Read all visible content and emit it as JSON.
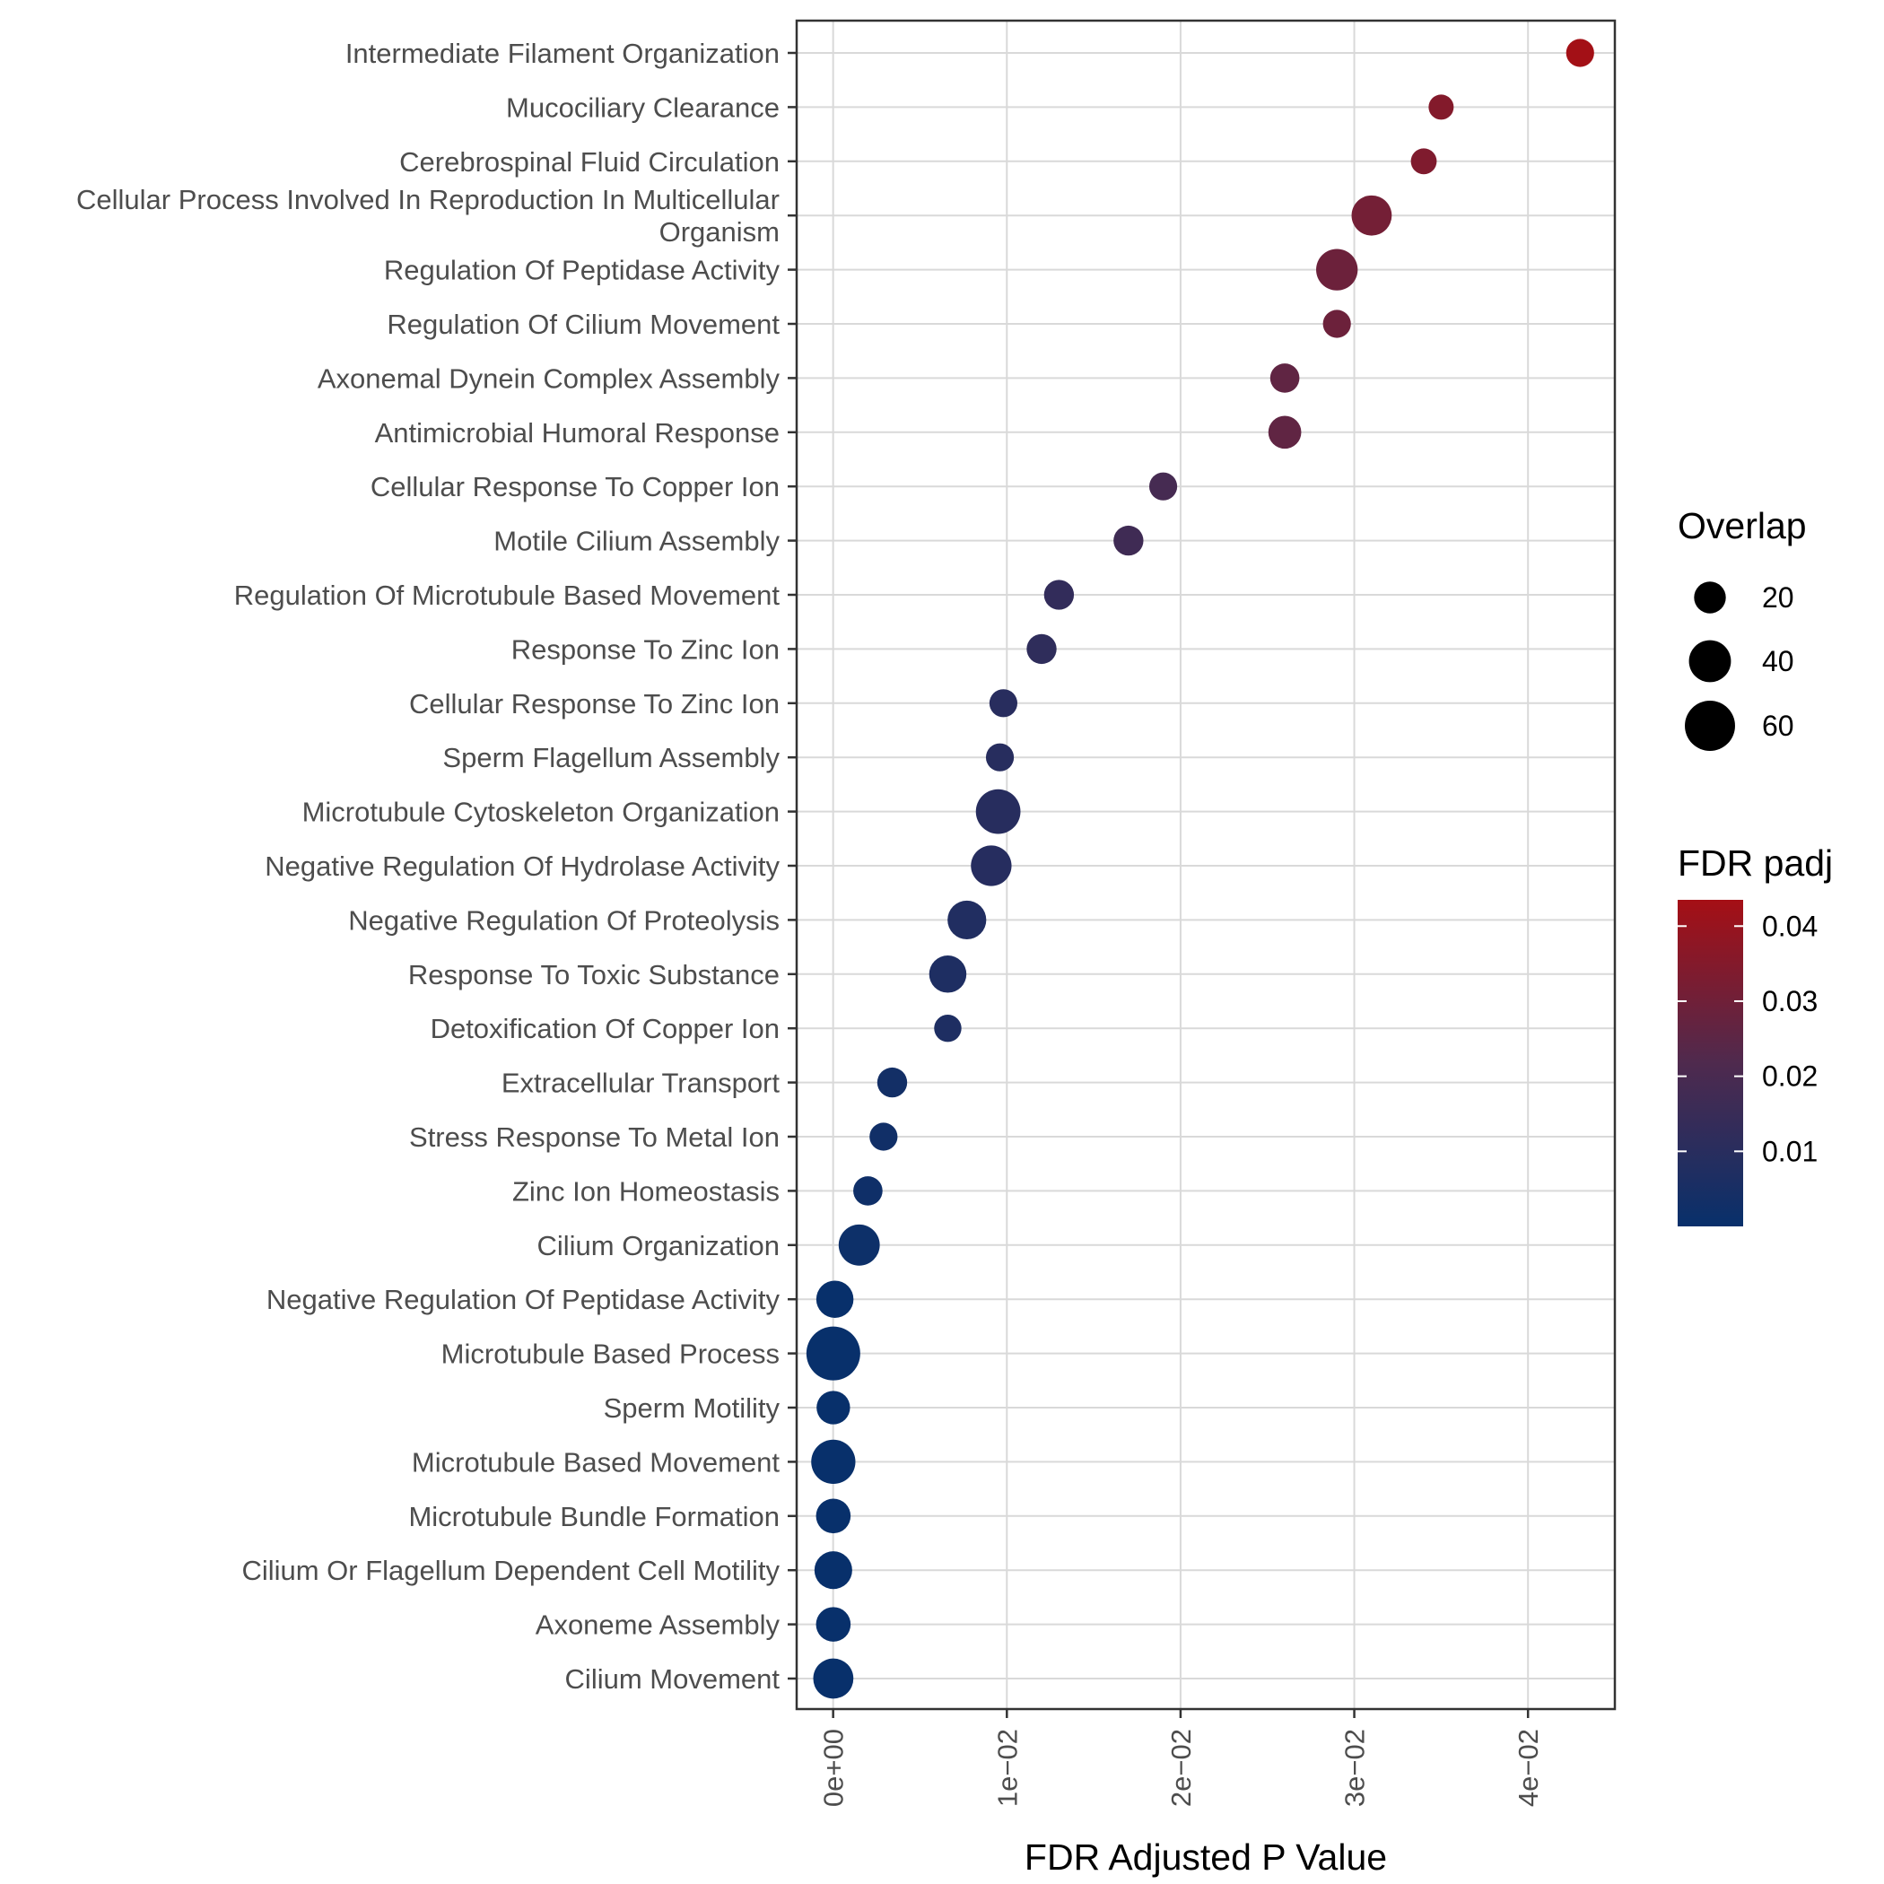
{
  "chart_data": {
    "type": "scatter",
    "xlabel": "FDR Adjusted P Value",
    "xlim": [
      -0.0021,
      0.045
    ],
    "x_ticks": [
      {
        "value": 0.0,
        "label": "0e+00"
      },
      {
        "value": 0.01,
        "label": "1e−02"
      },
      {
        "value": 0.02,
        "label": "2e−02"
      },
      {
        "value": 0.03,
        "label": "3e−02"
      },
      {
        "value": 0.04,
        "label": "4e−02"
      }
    ],
    "grid": true,
    "legend_placement": "right",
    "size_legend": {
      "title": "Overlap",
      "entries": [
        {
          "label": "20",
          "value": 20
        },
        {
          "label": "40",
          "value": 40
        },
        {
          "label": "60",
          "value": 60
        }
      ]
    },
    "color_legend": {
      "title": "FDR padj",
      "low_color": "#08306b",
      "mid_color": "#4f2a4e",
      "high_color": "#a50f15",
      "range": [
        0.0,
        0.0435
      ],
      "ticks": [
        {
          "value": 0.01,
          "label": "0.01"
        },
        {
          "value": 0.02,
          "label": "0.02"
        },
        {
          "value": 0.03,
          "label": "0.03"
        },
        {
          "value": 0.04,
          "label": "0.04"
        }
      ]
    },
    "points": [
      {
        "term": [
          "Intermediate Filament Organization"
        ],
        "fdr": 0.043,
        "overlap": 14
      },
      {
        "term": [
          "Mucociliary Clearance"
        ],
        "fdr": 0.035,
        "overlap": 10
      },
      {
        "term": [
          "Cerebrospinal Fluid Circulation"
        ],
        "fdr": 0.034,
        "overlap": 11
      },
      {
        "term": [
          "Cellular Process Involved In Reproduction In Multicellular",
          "Organism"
        ],
        "fdr": 0.031,
        "overlap": 36
      },
      {
        "term": [
          "Regulation Of Peptidase Activity"
        ],
        "fdr": 0.029,
        "overlap": 39
      },
      {
        "term": [
          "Regulation Of Cilium Movement"
        ],
        "fdr": 0.029,
        "overlap": 14
      },
      {
        "term": [
          "Axonemal Dynein Complex Assembly"
        ],
        "fdr": 0.026,
        "overlap": 16
      },
      {
        "term": [
          "Antimicrobial Humoral Response"
        ],
        "fdr": 0.026,
        "overlap": 22
      },
      {
        "term": [
          "Cellular Response To Copper Ion"
        ],
        "fdr": 0.019,
        "overlap": 14
      },
      {
        "term": [
          "Motile Cilium Assembly"
        ],
        "fdr": 0.017,
        "overlap": 17
      },
      {
        "term": [
          "Regulation Of Microtubule Based Movement"
        ],
        "fdr": 0.013,
        "overlap": 17
      },
      {
        "term": [
          "Response To Zinc Ion"
        ],
        "fdr": 0.012,
        "overlap": 17
      },
      {
        "term": [
          "Cellular Response To Zinc Ion"
        ],
        "fdr": 0.0098,
        "overlap": 14
      },
      {
        "term": [
          "Sperm Flagellum Assembly"
        ],
        "fdr": 0.0096,
        "overlap": 14
      },
      {
        "term": [
          "Microtubule Cytoskeleton Organization"
        ],
        "fdr": 0.0095,
        "overlap": 46
      },
      {
        "term": [
          "Negative Regulation Of Hydrolase Activity"
        ],
        "fdr": 0.0091,
        "overlap": 37
      },
      {
        "term": [
          "Negative Regulation Of Proteolysis"
        ],
        "fdr": 0.0077,
        "overlap": 33
      },
      {
        "term": [
          "Response To Toxic Substance"
        ],
        "fdr": 0.0066,
        "overlap": 30
      },
      {
        "term": [
          "Detoxification Of Copper Ion"
        ],
        "fdr": 0.0066,
        "overlap": 13
      },
      {
        "term": [
          "Extracellular Transport"
        ],
        "fdr": 0.0034,
        "overlap": 17
      },
      {
        "term": [
          "Stress Response To Metal Ion"
        ],
        "fdr": 0.0029,
        "overlap": 14
      },
      {
        "term": [
          "Zinc Ion Homeostasis"
        ],
        "fdr": 0.002,
        "overlap": 16
      },
      {
        "term": [
          "Cilium Organization"
        ],
        "fdr": 0.0015,
        "overlap": 38
      },
      {
        "term": [
          "Negative Regulation Of Peptidase Activity"
        ],
        "fdr": 0.0001,
        "overlap": 30
      },
      {
        "term": [
          "Microtubule Based Process"
        ],
        "fdr": 1e-05,
        "overlap": 70
      },
      {
        "term": [
          "Sperm Motility"
        ],
        "fdr": 1e-05,
        "overlap": 23
      },
      {
        "term": [
          "Microtubule Based Movement"
        ],
        "fdr": 1e-05,
        "overlap": 45
      },
      {
        "term": [
          "Microtubule Bundle Formation"
        ],
        "fdr": 1e-05,
        "overlap": 25
      },
      {
        "term": [
          "Cilium Or Flagellum Dependent Cell Motility"
        ],
        "fdr": 1e-05,
        "overlap": 31
      },
      {
        "term": [
          "Axoneme Assembly"
        ],
        "fdr": 1e-05,
        "overlap": 25
      },
      {
        "term": [
          "Cilium Movement"
        ],
        "fdr": 1e-05,
        "overlap": 36
      }
    ]
  }
}
